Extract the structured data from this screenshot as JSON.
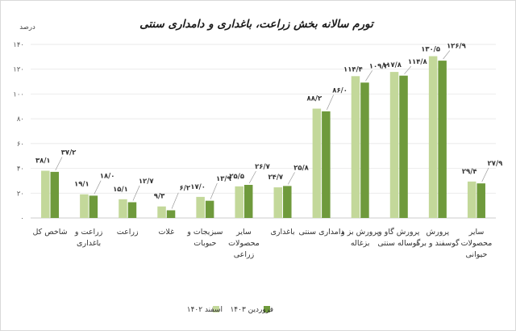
{
  "chart_data": {
    "type": "bar",
    "title": "تورم سالانه بخش زراعت، باغداری و دامداری سنتی",
    "ylabel": "درصد",
    "ylim": [
      0,
      140
    ],
    "yticks": [
      "۰",
      "۲۰",
      "۴۰",
      "۶۰",
      "۸۰",
      "۱۰۰",
      "۱۲۰",
      "۱۴۰"
    ],
    "ytick_values": [
      0,
      20,
      40,
      60,
      80,
      100,
      120,
      140
    ],
    "grid": true,
    "legend_position": "bottom-left",
    "categories": [
      [
        "شاخص کل"
      ],
      [
        "زراعت و",
        "باغداری"
      ],
      [
        "زراعت"
      ],
      [
        "غلات"
      ],
      [
        "سبزیجات و",
        "حبوبات"
      ],
      [
        "سایر",
        "محصولات",
        "زراعی"
      ],
      [
        "باغداری"
      ],
      [
        "دامداری سنتی"
      ],
      [
        "پرورش بز و",
        "بزغاله"
      ],
      [
        "پرورش گاو و",
        "گوساله سنتی"
      ],
      [
        "پرورش",
        "گوسفند و بره"
      ],
      [
        "سایر",
        "محصولات",
        "حیوانی"
      ]
    ],
    "series": [
      {
        "name": "اسفند ۱۴۰۲",
        "color": "#c3d89a",
        "values": [
          38.1,
          19.1,
          15.1,
          9.3,
          17.0,
          25.5,
          24.7,
          88.2,
          114.4,
          117.8,
          130.5,
          29.4
        ],
        "labels": [
          "۳۸/۱",
          "۱۹/۱",
          "۱۵/۱",
          "۹/۳",
          "۱۷/۰",
          "۲۵/۵",
          "۲۴/۷",
          "۸۸/۲",
          "۱۱۴/۴",
          "۱۱۷/۸",
          "۱۳۰/۵",
          "۲۹/۴"
        ]
      },
      {
        "name": "فروردین ۱۴۰۳",
        "color": "#6f9a3c",
        "values": [
          37.2,
          18.0,
          12.7,
          6.2,
          13.9,
          26.7,
          25.8,
          86.0,
          109.2,
          114.8,
          126.9,
          27.9
        ],
        "labels": [
          "۳۷/۲",
          "۱۸/۰",
          "۱۲/۷",
          "۶/۲",
          "۱۳/۹",
          "۲۶/۷",
          "۲۵/۸",
          "۸۶/۰",
          "۱۰۹/۲",
          "۱۱۴/۸",
          "۱۲۶/۹",
          "۲۷/۹"
        ]
      }
    ]
  }
}
